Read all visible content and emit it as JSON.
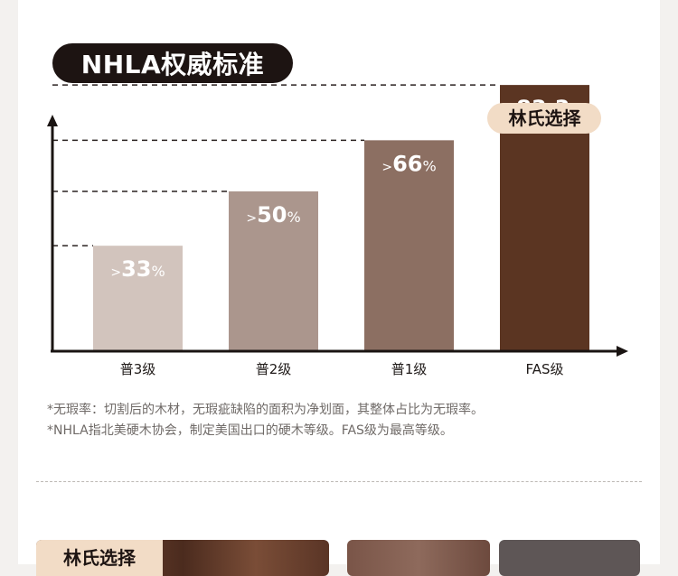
{
  "header": {
    "title": "NHLA权威标准"
  },
  "chart_data": {
    "type": "bar",
    "categories": [
      "普3级",
      "普2级",
      "普1级",
      "FAS级"
    ],
    "values": [
      33,
      50,
      66,
      83.3
    ],
    "value_labels": [
      ">33%",
      ">50%",
      ">66%",
      ">83.3%"
    ],
    "ylim": [
      0,
      100
    ],
    "highlight_label": "林氏选择",
    "colors": [
      "#d2c4bd",
      "#ab968d",
      "#8c6f62",
      "#5b3522"
    ],
    "grid": false
  },
  "notes": [
    "*无瑕率：切割后的木材，无瑕疵缺陷的面积为净划面，其整体占比为无瑕率。",
    "*NHLA指北美硬木协会，制定美国出口的硬木等级。FAS级为最高等级。"
  ],
  "footer": {
    "tab_label": "林氏选择"
  }
}
